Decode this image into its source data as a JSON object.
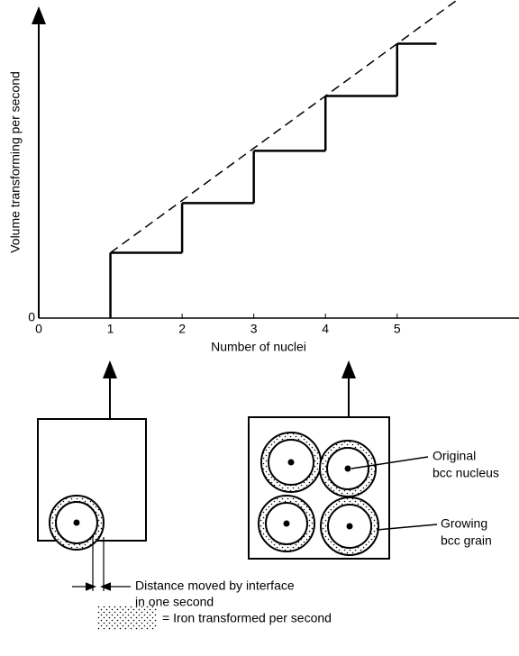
{
  "chart_data": {
    "type": "step",
    "y_label": "Volume transforming per second",
    "x_label": "Number of nuclei",
    "x": [
      1,
      2,
      3,
      4,
      5
    ],
    "values": [
      1.25,
      2.2,
      3.2,
      4.25,
      5.25
    ],
    "color": "#000000",
    "xlim": [
      0,
      6.7
    ],
    "xticks": [
      0,
      1,
      2,
      3,
      4,
      5
    ],
    "ylim": [
      0,
      6
    ],
    "yticks": [
      0
    ],
    "annotations": {
      "original_1": "Original",
      "original_2": "bcc nucleus",
      "growing_1": "Growing",
      "growing_2": "bcc grain",
      "distance_1": "Distance moved by interface",
      "distance_2": "in one second",
      "legend": "= Iron transformed per second"
    }
  }
}
